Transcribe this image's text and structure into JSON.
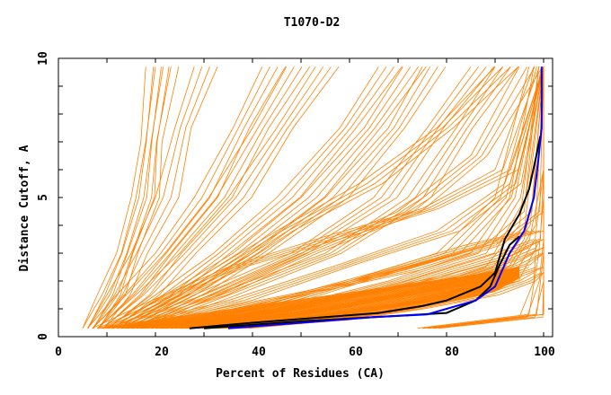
{
  "chart_data": {
    "type": "line",
    "title": "T1070-D2",
    "xlabel": "Percent of Residues (CA)",
    "ylabel": "Distance Cutoff, A",
    "xlim": [
      0,
      102
    ],
    "ylim": [
      0,
      10
    ],
    "xticks": [
      "0",
      "20",
      "40",
      "60",
      "80",
      "100"
    ],
    "yticks": [
      "0",
      "5",
      "10"
    ],
    "grid": false,
    "legend": "none",
    "colors": {
      "models": "#ff8000",
      "highlight_blue": "#0000ff",
      "highlight_black": "#000000"
    },
    "series_orange": [
      [
        [
          5,
          0.3
        ],
        [
          8,
          1.5
        ],
        [
          12,
          3
        ],
        [
          15,
          5
        ],
        [
          17,
          7
        ],
        [
          18,
          9.7
        ]
      ],
      [
        [
          5,
          0.3
        ],
        [
          9,
          1.5
        ],
        [
          13,
          3
        ],
        [
          16,
          5
        ],
        [
          18,
          7
        ],
        [
          20,
          9.7
        ]
      ],
      [
        [
          6,
          0.3
        ],
        [
          10,
          1.5
        ],
        [
          15,
          3
        ],
        [
          20,
          5
        ],
        [
          24,
          7.5
        ],
        [
          28,
          9.7
        ]
      ],
      [
        [
          6,
          0.3
        ],
        [
          12,
          1.5
        ],
        [
          20,
          3
        ],
        [
          28,
          5
        ],
        [
          36,
          7.5
        ],
        [
          42,
          9.7
        ]
      ],
      [
        [
          7,
          0.3
        ],
        [
          14,
          1.5
        ],
        [
          22,
          3
        ],
        [
          31,
          5
        ],
        [
          40,
          7.5
        ],
        [
          47,
          9.7
        ]
      ],
      [
        [
          8,
          0.3
        ],
        [
          16,
          1.5
        ],
        [
          25,
          3
        ],
        [
          35,
          5
        ],
        [
          45,
          7.5
        ],
        [
          53,
          9.7
        ]
      ],
      [
        [
          10,
          0.3
        ],
        [
          20,
          1.5
        ],
        [
          32,
          3
        ],
        [
          45,
          5
        ],
        [
          58,
          7.5
        ],
        [
          66,
          9.7
        ]
      ],
      [
        [
          11,
          0.3
        ],
        [
          22,
          1.5
        ],
        [
          36,
          3
        ],
        [
          50,
          5
        ],
        [
          63,
          7.5
        ],
        [
          71,
          9.7
        ]
      ],
      [
        [
          12,
          0.3
        ],
        [
          25,
          1.5
        ],
        [
          40,
          3
        ],
        [
          55,
          5
        ],
        [
          68,
          7.5
        ],
        [
          75,
          9.7
        ]
      ],
      [
        [
          14,
          0.3
        ],
        [
          28,
          1.5
        ],
        [
          48,
          3
        ],
        [
          65,
          5
        ],
        [
          76,
          7.5
        ],
        [
          85,
          9.7
        ]
      ],
      [
        [
          15,
          0.3
        ],
        [
          32,
          1.5
        ],
        [
          55,
          3
        ],
        [
          72,
          5
        ],
        [
          82,
          7.5
        ],
        [
          90,
          9.7
        ]
      ],
      [
        [
          9,
          0.3
        ],
        [
          26,
          1.8
        ],
        [
          45,
          3.8
        ],
        [
          62,
          5.5
        ],
        [
          78,
          7.5
        ],
        [
          90,
          9.7
        ]
      ],
      [
        [
          10,
          0.3
        ],
        [
          30,
          1.5
        ],
        [
          50,
          3
        ],
        [
          70,
          4.5
        ],
        [
          85,
          6.5
        ],
        [
          95,
          9.7
        ]
      ],
      [
        [
          12,
          0.3
        ],
        [
          35,
          1.3
        ],
        [
          58,
          2.6
        ],
        [
          78,
          3.8
        ],
        [
          92,
          5.5
        ],
        [
          100,
          9.7
        ]
      ],
      [
        [
          16,
          0.3
        ],
        [
          42,
          1.2
        ],
        [
          65,
          2.3
        ],
        [
          84,
          3.3
        ],
        [
          97,
          3.8
        ]
      ],
      [
        [
          18,
          0.3
        ],
        [
          40,
          1
        ],
        [
          60,
          2
        ],
        [
          78,
          3
        ],
        [
          90,
          5
        ],
        [
          97,
          9.7
        ]
      ],
      [
        [
          20,
          0.3
        ],
        [
          48,
          1.1
        ],
        [
          70,
          1.9
        ],
        [
          87,
          2.8
        ],
        [
          98,
          3.5
        ]
      ],
      [
        [
          20,
          0.3
        ],
        [
          40,
          0.8
        ],
        [
          60,
          1.5
        ],
        [
          80,
          2.2
        ],
        [
          92,
          2.8
        ],
        [
          97,
          3.2
        ]
      ],
      [
        [
          22,
          0.3
        ],
        [
          45,
          1
        ],
        [
          68,
          2
        ],
        [
          85,
          3
        ],
        [
          93,
          5
        ],
        [
          98,
          9.7
        ]
      ],
      [
        [
          24,
          0.3
        ],
        [
          46,
          0.8
        ],
        [
          66,
          1.4
        ],
        [
          82,
          2
        ],
        [
          94,
          2.6
        ],
        [
          98,
          3
        ]
      ],
      [
        [
          25,
          0.3
        ],
        [
          50,
          0.9
        ],
        [
          72,
          1.6
        ],
        [
          88,
          2.5
        ],
        [
          95,
          4
        ],
        [
          99,
          9.7
        ]
      ],
      [
        [
          28,
          0.3
        ],
        [
          50,
          0.7
        ],
        [
          70,
          1.2
        ],
        [
          85,
          1.8
        ],
        [
          94,
          2.3
        ],
        [
          97,
          2.5
        ]
      ],
      [
        [
          30,
          0.3
        ],
        [
          55,
          0.8
        ],
        [
          75,
          1.3
        ],
        [
          90,
          2
        ],
        [
          96,
          3.5
        ],
        [
          99,
          6
        ]
      ],
      [
        [
          33,
          0.3
        ],
        [
          55,
          0.6
        ],
        [
          72,
          1
        ],
        [
          86,
          1.5
        ],
        [
          95,
          2
        ],
        [
          98,
          2.3
        ]
      ],
      [
        [
          14,
          0.3
        ],
        [
          30,
          0.9
        ],
        [
          50,
          1.6
        ],
        [
          70,
          2.4
        ],
        [
          88,
          3.3
        ],
        [
          96,
          4.5
        ],
        [
          99,
          9.7
        ]
      ],
      [
        [
          7,
          0.3
        ],
        [
          18,
          1.2
        ],
        [
          35,
          2.5
        ],
        [
          55,
          3.6
        ],
        [
          75,
          4.6
        ],
        [
          90,
          6
        ],
        [
          98,
          9.7
        ]
      ],
      [
        [
          74,
          0.3
        ],
        [
          97,
          0.8
        ],
        [
          99,
          3
        ],
        [
          100,
          5
        ],
        [
          100,
          9.7
        ]
      ],
      [
        [
          75,
          0.3
        ],
        [
          95,
          0.7
        ],
        [
          98,
          2
        ],
        [
          98.5,
          3.5
        ]
      ]
    ],
    "series_blue": [
      [
        35,
        0.3
      ],
      [
        50,
        0.5
      ],
      [
        65,
        0.7
      ],
      [
        76,
        0.8
      ],
      [
        86,
        1.3
      ],
      [
        90,
        1.8
      ],
      [
        93,
        3
      ],
      [
        96,
        3.8
      ],
      [
        98,
        5
      ],
      [
        99,
        6.5
      ],
      [
        99.6,
        7.5
      ],
      [
        99.6,
        9.7
      ]
    ],
    "series_black": [
      [
        [
          27,
          0.3
        ],
        [
          40,
          0.5
        ],
        [
          55,
          0.7
        ],
        [
          66,
          0.85
        ],
        [
          75,
          1.1
        ],
        [
          80,
          1.3
        ],
        [
          87,
          1.8
        ],
        [
          90,
          2.3
        ],
        [
          92,
          3.5
        ],
        [
          95,
          4.4
        ],
        [
          97,
          5.3
        ],
        [
          98.5,
          6.5
        ],
        [
          99.3,
          7.2
        ]
      ],
      [
        [
          30,
          0.3
        ],
        [
          50,
          0.55
        ],
        [
          70,
          0.75
        ],
        [
          80,
          0.85
        ],
        [
          86,
          1.3
        ],
        [
          89,
          1.8
        ],
        [
          91,
          2.6
        ],
        [
          93,
          3.3
        ],
        [
          95,
          3.6
        ]
      ]
    ]
  }
}
